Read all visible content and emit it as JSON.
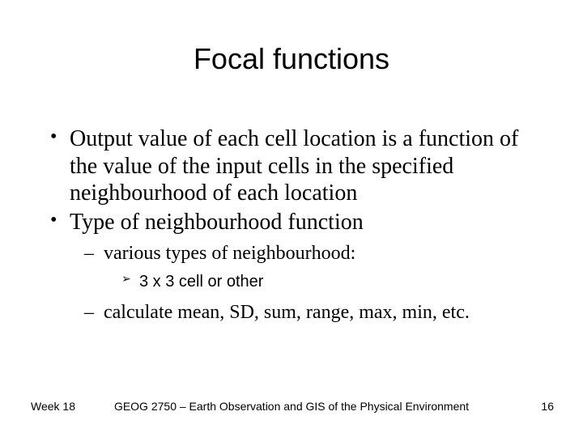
{
  "colors": {
    "background": "#ffffff",
    "text": "#000000"
  },
  "typography": {
    "title_font": "Arial",
    "title_size_pt": 36,
    "body_font": "Times New Roman",
    "level1_size_pt": 28,
    "level2_size_pt": 24,
    "level3_font": "Arial",
    "level3_size_pt": 20,
    "footer_font": "Arial",
    "footer_size_pt": 14
  },
  "slide": {
    "title": "Focal functions",
    "bullets": [
      {
        "text": "Output value of each cell location is a function of the value of the input cells in the specified neighbourhood of each location"
      },
      {
        "text": "Type of neighbourhood function",
        "children": [
          {
            "text": "various types of neighbourhood:",
            "children": [
              {
                "text": "3 x 3 cell or other"
              }
            ]
          },
          {
            "text": "calculate mean, SD, sum, range, max, min, etc."
          }
        ]
      }
    ]
  },
  "footer": {
    "left": "Week 18",
    "center": "GEOG 2750 – Earth Observation and GIS of the Physical Environment",
    "page_number": "16"
  }
}
